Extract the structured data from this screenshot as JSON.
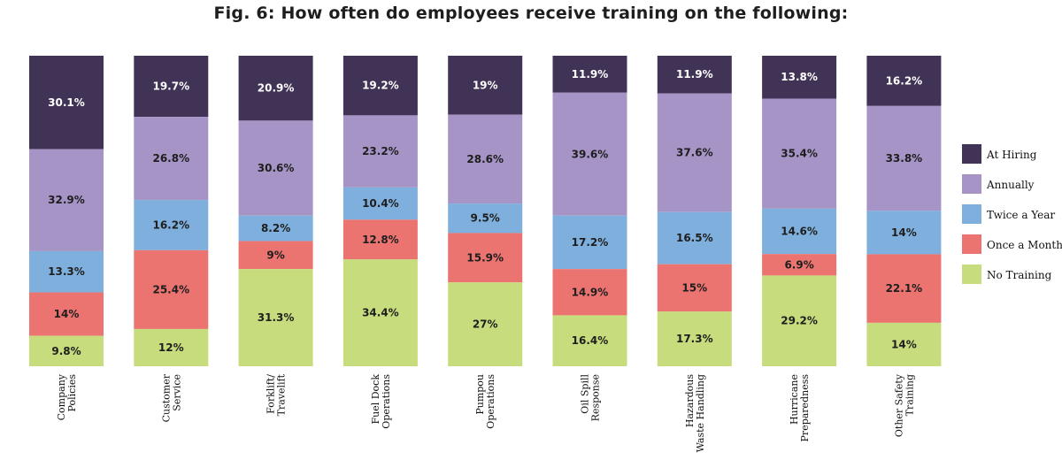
{
  "chart_data": {
    "type": "bar",
    "stacked": true,
    "title": "Fig. 6: How often do employees receive training on the following:",
    "categories": [
      [
        "Company",
        "Policies"
      ],
      [
        "Customer",
        "Service"
      ],
      [
        "Forklift/",
        "Travelift"
      ],
      [
        "Fuel Dock",
        "Operations"
      ],
      [
        "Pumpou",
        "Operations"
      ],
      [
        "Oil Spill",
        "Response"
      ],
      [
        "Hazardous",
        "Waste Handling"
      ],
      [
        "Hurricane",
        "Preparedness"
      ],
      [
        "Other Safety",
        "Training"
      ]
    ],
    "series": [
      {
        "name": "At Hiring",
        "color": "#413355",
        "label_color": "#ffffff",
        "values": [
          30.1,
          19.7,
          20.9,
          19.2,
          19,
          11.9,
          11.9,
          13.8,
          16.2
        ],
        "labels": [
          "30.1%",
          "19.7%",
          "20.9%",
          "19.2%",
          "19%",
          "11.9%",
          "11.9%",
          "13.8%",
          "16.2%"
        ]
      },
      {
        "name": "Annually",
        "color": "#a694c6",
        "label_color": "#1e1e1e",
        "values": [
          32.9,
          26.8,
          30.6,
          23.2,
          28.6,
          39.6,
          37.6,
          35.4,
          33.8
        ],
        "labels": [
          "32.9%",
          "26.8%",
          "30.6%",
          "23.2%",
          "28.6%",
          "39.6%",
          "37.6%",
          "35.4%",
          "33.8%"
        ]
      },
      {
        "name": "Twice a Year",
        "color": "#7fb0dd",
        "label_color": "#1e1e1e",
        "values": [
          13.3,
          16.2,
          8.2,
          10.4,
          9.5,
          17.2,
          16.5,
          14.6,
          14
        ],
        "labels": [
          "13.3%",
          "16.2%",
          "8.2%",
          "10.4%",
          "9.5%",
          "17.2%",
          "16.5%",
          "14.6%",
          "14%"
        ]
      },
      {
        "name": "Once a Month",
        "color": "#eb7470",
        "label_color": "#1e1e1e",
        "values": [
          14,
          25.4,
          9,
          12.8,
          15.9,
          14.9,
          15,
          6.9,
          22.1
        ],
        "labels": [
          "14%",
          "25.4%",
          "9%",
          "12.8%",
          "15.9%",
          "14.9%",
          "15%",
          "6.9%",
          "22.1%"
        ]
      },
      {
        "name": "No Training",
        "color": "#c7dc7c",
        "label_color": "#1e1e1e",
        "values": [
          9.8,
          12,
          31.3,
          34.4,
          27,
          16.4,
          17.3,
          29.2,
          14
        ],
        "labels": [
          "9.8%",
          "12%",
          "31.3%",
          "34.4%",
          "27%",
          "16.4%",
          "17.3%",
          "29.2%",
          "14%"
        ]
      }
    ],
    "legend_position": "right",
    "grid": false
  }
}
